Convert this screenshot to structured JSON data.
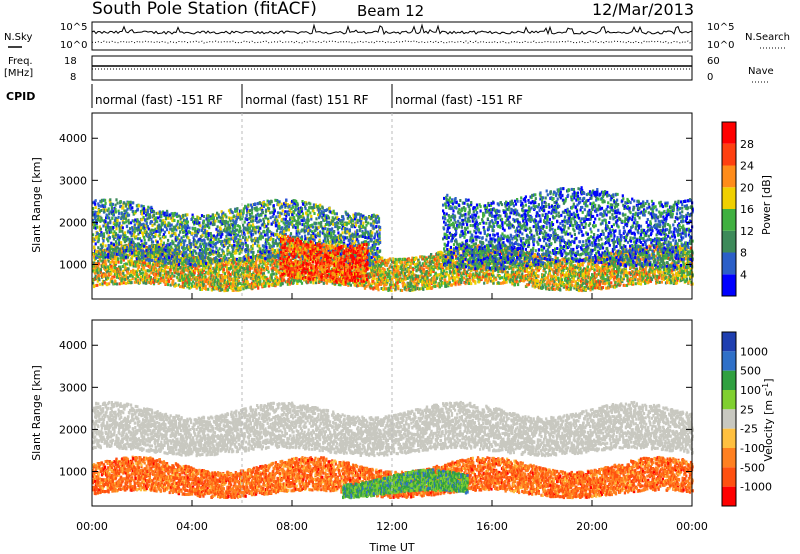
{
  "header": {
    "station": "South Pole Station (fitACF)",
    "beam": "Beam 12",
    "date": "12/Mar/2013"
  },
  "strip_labels": {
    "nsky": "N.Sky",
    "nsearch": "N.Search",
    "freq_line1": "Freq.",
    "freq_line2": "[MHz]",
    "nave": "Nave",
    "cpid": "CPID",
    "left_top_tick": "10^5",
    "left_bottom_tick": "10^0",
    "right_top_tick": "10^5",
    "right_bottom_tick": "10^0",
    "freq_top_tick": "18",
    "freq_bottom_tick": "8",
    "nave_top_tick": "60",
    "nave_bottom_tick": "0"
  },
  "cpid_segments": [
    {
      "label": "normal (fast) -151 RF",
      "start_h": 0
    },
    {
      "label": "normal (fast) 151 RF",
      "start_h": 6
    },
    {
      "label": "normal (fast) -151 RF",
      "start_h": 12
    }
  ],
  "colors": {
    "power": [
      "#0000ff",
      "#2b5fc8",
      "#3d8a5a",
      "#40b040",
      "#f0d000",
      "#ff8c1a",
      "#ff4010",
      "#ff0000"
    ],
    "velocity": [
      "#1f3fb0",
      "#2f70c8",
      "#30a040",
      "#80d030",
      "#c8c8c0",
      "#ffc040",
      "#ff8020",
      "#ff5010",
      "#ff0000"
    ],
    "ground_scatter": "#c8c8c0"
  },
  "chart_data": [
    {
      "type": "heatmap",
      "title": "",
      "xlabel": "Time UT",
      "ylabel": "Slant Range [km]",
      "xlim": [
        0,
        24
      ],
      "ylim": [
        180,
        4600
      ],
      "x_ticks": [
        "00:00",
        "04:00",
        "08:00",
        "12:00",
        "16:00",
        "20:00",
        "00:00"
      ],
      "y_ticks": [
        1000,
        2000,
        3000,
        4000
      ],
      "colorbar": {
        "label": "Power [dB]",
        "ticks": [
          4,
          8,
          12,
          16,
          20,
          24,
          28
        ],
        "range": [
          0,
          32
        ]
      },
      "bands": [
        {
          "range_km": [
            500,
            1350
          ],
          "t_h": [
            0,
            24
          ],
          "level": 0.55
        },
        {
          "range_km": [
            1100,
            2400
          ],
          "t_h": [
            0,
            11.5
          ],
          "level": 0.3
        },
        {
          "range_km": [
            700,
            1650
          ],
          "t_h": [
            7.5,
            11
          ],
          "level": 0.85
        },
        {
          "range_km": [
            1000,
            2700
          ],
          "t_h": [
            14,
            24
          ],
          "level": 0.2
        }
      ]
    },
    {
      "type": "heatmap",
      "title": "",
      "xlabel": "Time UT",
      "ylabel": "Slant Range [km]",
      "xlim": [
        0,
        24
      ],
      "ylim": [
        180,
        4600
      ],
      "x_ticks": [
        "00:00",
        "04:00",
        "08:00",
        "12:00",
        "16:00",
        "20:00",
        "00:00"
      ],
      "y_ticks": [
        1000,
        2000,
        3000,
        4000
      ],
      "colorbar": {
        "label": "Velocity [m s",
        "label_sup": "-1",
        "label_end": "]",
        "ticks": [
          "1000",
          "500",
          "100",
          "25",
          "-25",
          "-100",
          "-500",
          "-1000"
        ]
      },
      "bands": [
        {
          "range_km": [
            500,
            1200
          ],
          "t_h": [
            0,
            24
          ],
          "level": -0.6
        },
        {
          "range_km": [
            1500,
            2500
          ],
          "t_h": [
            0,
            24
          ],
          "level": 0.0
        },
        {
          "range_km": [
            500,
            900
          ],
          "t_h": [
            10,
            15
          ],
          "level": 0.45
        }
      ]
    }
  ]
}
